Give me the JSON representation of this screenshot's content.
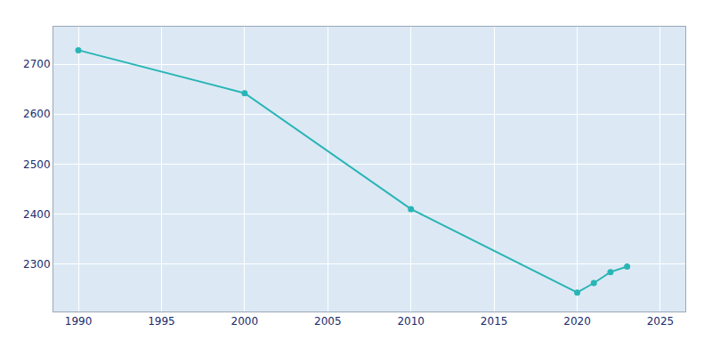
{
  "chart_data": {
    "type": "line",
    "x": [
      1990,
      2000,
      2010,
      2020,
      2021,
      2022,
      2023
    ],
    "values": [
      2728,
      2642,
      2410,
      2243,
      2262,
      2284,
      2295
    ],
    "color": "#29b5b5",
    "marker": "circle",
    "line_style": "solid",
    "xlim": [
      1988.5,
      2026.5
    ],
    "ylim": [
      2205,
      2775
    ],
    "xticks": [
      1990,
      1995,
      2000,
      2005,
      2010,
      2015,
      2020,
      2025
    ],
    "yticks": [
      2300,
      2400,
      2500,
      2600,
      2700
    ],
    "grid": true
  }
}
